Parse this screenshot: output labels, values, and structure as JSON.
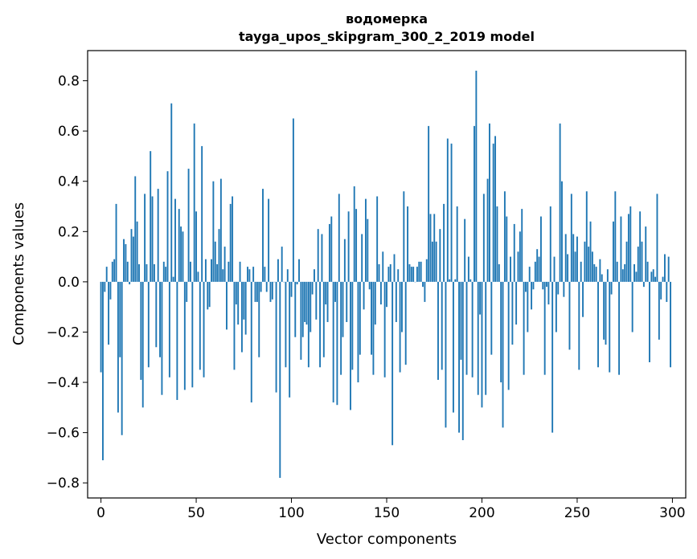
{
  "chart_data": {
    "type": "bar",
    "title": "водомерка",
    "subtitle": "tayga_upos_skipgram_300_2_2019 model",
    "xlabel": "Vector components",
    "ylabel": "Components values",
    "xlim": [
      -7,
      307
    ],
    "ylim": [
      -0.86,
      0.92
    ],
    "xticks": [
      0,
      50,
      100,
      150,
      200,
      250,
      300
    ],
    "xtick_labels": [
      "0",
      "50",
      "100",
      "150",
      "200",
      "250",
      "300"
    ],
    "yticks": [
      -0.8,
      -0.6,
      -0.4,
      -0.2,
      0.0,
      0.2,
      0.4,
      0.6,
      0.8
    ],
    "ytick_labels": [
      "−0.8",
      "−0.6",
      "−0.4",
      "−0.2",
      "0.0",
      "0.2",
      "0.4",
      "0.6",
      "0.8"
    ],
    "bar_color": "#1f77b4",
    "grid": false,
    "values": [
      -0.36,
      -0.71,
      -0.04,
      0.06,
      -0.25,
      -0.07,
      0.08,
      0.09,
      0.31,
      -0.52,
      -0.3,
      -0.61,
      0.17,
      0.15,
      0.08,
      -0.01,
      0.21,
      0.18,
      0.42,
      0.24,
      0.07,
      -0.39,
      -0.5,
      0.35,
      0.07,
      -0.34,
      0.52,
      0.34,
      0.07,
      -0.26,
      0.37,
      -0.3,
      -0.45,
      0.08,
      0.06,
      0.44,
      -0.38,
      0.71,
      0.02,
      0.33,
      -0.47,
      0.29,
      0.22,
      0.2,
      -0.43,
      -0.08,
      0.45,
      0.08,
      -0.42,
      0.63,
      0.28,
      0.04,
      -0.35,
      0.54,
      -0.38,
      0.09,
      -0.11,
      -0.1,
      0.09,
      0.4,
      0.16,
      0.07,
      0.21,
      0.41,
      0.05,
      0.14,
      -0.19,
      0.08,
      0.31,
      0.34,
      -0.35,
      -0.09,
      -0.17,
      0.08,
      -0.28,
      -0.15,
      -0.21,
      0.06,
      0.05,
      -0.48,
      0.06,
      -0.08,
      -0.08,
      -0.3,
      -0.04,
      0.37,
      0.06,
      -0.04,
      0.33,
      -0.08,
      -0.07,
      0.0,
      -0.44,
      0.09,
      -0.78,
      0.14,
      0.0,
      -0.34,
      0.05,
      -0.46,
      -0.06,
      0.65,
      -0.22,
      -0.01,
      0.09,
      -0.31,
      -0.22,
      -0.16,
      -0.17,
      -0.34,
      -0.2,
      -0.05,
      0.05,
      -0.15,
      0.21,
      -0.34,
      0.19,
      -0.3,
      -0.09,
      -0.16,
      0.23,
      0.26,
      -0.48,
      -0.08,
      -0.49,
      0.35,
      -0.37,
      -0.22,
      0.17,
      -0.16,
      0.28,
      -0.51,
      -0.35,
      0.38,
      0.29,
      -0.4,
      -0.29,
      0.19,
      -0.11,
      0.33,
      0.25,
      -0.03,
      -0.29,
      -0.37,
      -0.17,
      0.34,
      0.07,
      -0.09,
      0.12,
      -0.38,
      -0.1,
      0.06,
      0.07,
      -0.65,
      0.11,
      -0.16,
      0.05,
      -0.36,
      -0.2,
      0.36,
      -0.33,
      0.3,
      0.07,
      0.06,
      0.06,
      0.0,
      0.06,
      0.08,
      0.08,
      -0.02,
      -0.08,
      0.09,
      0.62,
      0.27,
      0.16,
      0.27,
      0.16,
      -0.39,
      0.21,
      -0.35,
      0.31,
      -0.58,
      0.57,
      0.01,
      0.55,
      -0.52,
      0.01,
      0.3,
      -0.6,
      -0.31,
      -0.63,
      0.25,
      -0.37,
      0.1,
      0.01,
      -0.38,
      0.62,
      0.84,
      -0.45,
      -0.13,
      -0.5,
      0.35,
      -0.45,
      0.41,
      0.63,
      -0.29,
      0.55,
      0.58,
      0.3,
      0.07,
      -0.4,
      -0.58,
      0.36,
      0.26,
      -0.43,
      0.1,
      -0.25,
      0.23,
      -0.17,
      0.12,
      0.2,
      0.29,
      -0.37,
      -0.04,
      -0.2,
      0.06,
      -0.11,
      -0.03,
      0.08,
      0.13,
      0.1,
      0.26,
      -0.03,
      -0.37,
      -0.02,
      -0.09,
      0.3,
      -0.6,
      0.1,
      -0.2,
      -0.05,
      0.63,
      0.4,
      -0.06,
      0.19,
      0.11,
      -0.27,
      0.35,
      0.19,
      0.12,
      0.18,
      -0.35,
      0.08,
      -0.14,
      0.16,
      0.36,
      0.14,
      0.24,
      0.12,
      0.07,
      0.06,
      -0.34,
      0.09,
      0.03,
      -0.23,
      -0.25,
      0.05,
      -0.36,
      -0.05,
      0.24,
      0.36,
      0.08,
      -0.37,
      0.26,
      0.05,
      0.07,
      0.16,
      0.27,
      0.3,
      -0.2,
      0.07,
      0.04,
      0.14,
      0.28,
      0.16,
      -0.02,
      0.22,
      0.08,
      -0.32,
      0.04,
      0.05,
      0.02,
      0.35,
      -0.23,
      -0.07,
      0.02,
      0.11,
      -0.08,
      0.1,
      -0.34
    ]
  }
}
